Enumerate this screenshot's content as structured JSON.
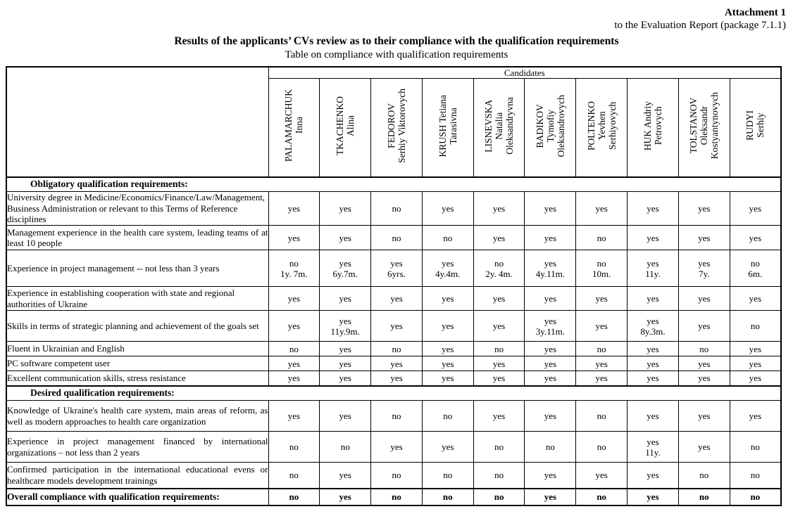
{
  "page": {
    "attachment_title": "Attachment 1",
    "attachment_subtitle": "to the Evaluation Report (package 7.1.1)",
    "title": "Results of the applicants’ CVs review as to their compliance with the qualification requirements",
    "subtitle": "Table on compliance with qualification requirements"
  },
  "table": {
    "candidates_label": "Candidates",
    "candidates": [
      [
        "PALAMARCHUK",
        "Inna"
      ],
      [
        "TKACHENKO",
        "Alina"
      ],
      [
        "FEDOROV",
        "Serhiy Viktorovych"
      ],
      [
        "KRUSH Tetiana",
        "Tarasivna"
      ],
      [
        "LISNEVSKA",
        "Natalia",
        "Oleksandryvna"
      ],
      [
        "BADIKOV",
        "Tymofiy",
        "Oleksandrovych"
      ],
      [
        "POLTENKO",
        "Yevhen",
        "Serhiyovych"
      ],
      [
        "HUK Andriy",
        "Petrovych"
      ],
      [
        "TOLSTANOV",
        "Oleksandr",
        "Kostyantynovych"
      ],
      [
        "RUDYI",
        "Serhiy"
      ]
    ],
    "rows": [
      {
        "type": "section",
        "h": 21,
        "label": "Obligatory qualification requirements:"
      },
      {
        "type": "req",
        "h": 48,
        "justify": false,
        "label": "University degree in Medicine/Economics/Finance/Law/Management, Business Administration or relevant to this Terms of Reference disciplines",
        "values": [
          [
            "yes"
          ],
          [
            "yes"
          ],
          [
            "no"
          ],
          [
            "yes"
          ],
          [
            "yes"
          ],
          [
            "yes"
          ],
          [
            "yes"
          ],
          [
            "yes"
          ],
          [
            "yes"
          ],
          [
            "yes"
          ]
        ]
      },
      {
        "type": "req",
        "h": 35,
        "justify": true,
        "label": "Management experience in the health care system, leading teams of at least 10 people",
        "values": [
          [
            "yes"
          ],
          [
            "yes"
          ],
          [
            "no"
          ],
          [
            "no"
          ],
          [
            "yes"
          ],
          [
            "yes"
          ],
          [
            "no"
          ],
          [
            "yes"
          ],
          [
            "yes"
          ],
          [
            "yes"
          ]
        ]
      },
      {
        "type": "req",
        "h": 52,
        "justify": false,
        "label": "Experience in project management -- not less than 3 years",
        "values": [
          [
            "no",
            "1y. 7m."
          ],
          [
            "yes",
            "6y.7m."
          ],
          [
            "yes",
            "6yrs."
          ],
          [
            "yes",
            "4y.4m."
          ],
          [
            "no",
            "2y. 4m."
          ],
          [
            "yes",
            "4y.11m."
          ],
          [
            "no",
            "10m."
          ],
          [
            "yes",
            "11y."
          ],
          [
            "yes",
            "7y."
          ],
          [
            "no",
            "6m."
          ]
        ]
      },
      {
        "type": "req",
        "h": 34,
        "justify": false,
        "label": "Experience in establishing cooperation with state and regional authorities of Ukraine",
        "values": [
          [
            "yes"
          ],
          [
            "yes"
          ],
          [
            "yes"
          ],
          [
            "yes"
          ],
          [
            "yes"
          ],
          [
            "yes"
          ],
          [
            "yes"
          ],
          [
            "yes"
          ],
          [
            "yes"
          ],
          [
            "yes"
          ]
        ]
      },
      {
        "type": "req",
        "h": 44,
        "justify": false,
        "label": "Skills in terms of strategic planning and achievement of the goals set",
        "values": [
          [
            "yes"
          ],
          [
            "yes",
            "11y.9m."
          ],
          [
            "yes"
          ],
          [
            "yes"
          ],
          [
            "yes"
          ],
          [
            "yes",
            "3y.11m."
          ],
          [
            "yes"
          ],
          [
            "yes",
            "8y.3m."
          ],
          [
            "yes"
          ],
          [
            "no"
          ]
        ]
      },
      {
        "type": "req",
        "h": 21,
        "justify": false,
        "label": "Fluent in Ukrainian and English",
        "values": [
          [
            "no"
          ],
          [
            "yes"
          ],
          [
            "no"
          ],
          [
            "yes"
          ],
          [
            "no"
          ],
          [
            "yes"
          ],
          [
            "no"
          ],
          [
            "yes"
          ],
          [
            "no"
          ],
          [
            "yes"
          ]
        ]
      },
      {
        "type": "req",
        "h": 21,
        "justify": false,
        "label": "PC software competent user",
        "values": [
          [
            "yes"
          ],
          [
            "yes"
          ],
          [
            "yes"
          ],
          [
            "yes"
          ],
          [
            "yes"
          ],
          [
            "yes"
          ],
          [
            "yes"
          ],
          [
            "yes"
          ],
          [
            "yes"
          ],
          [
            "yes"
          ]
        ]
      },
      {
        "type": "req",
        "h": 21,
        "justify": false,
        "label": "Excellent communication skills, stress resistance",
        "values": [
          [
            "yes"
          ],
          [
            "yes"
          ],
          [
            "yes"
          ],
          [
            "yes"
          ],
          [
            "yes"
          ],
          [
            "yes"
          ],
          [
            "yes"
          ],
          [
            "yes"
          ],
          [
            "yes"
          ],
          [
            "yes"
          ]
        ]
      },
      {
        "type": "section",
        "h": 21,
        "label": "Desired qualification requirements:"
      },
      {
        "type": "req",
        "h": 44,
        "justify": true,
        "label": "Knowledge of Ukraine's health care system, main areas of reform, as well as modern approaches to health care organization",
        "values": [
          [
            "yes"
          ],
          [
            "yes"
          ],
          [
            "no"
          ],
          [
            "no"
          ],
          [
            "yes"
          ],
          [
            "yes"
          ],
          [
            "no"
          ],
          [
            "yes"
          ],
          [
            "yes"
          ],
          [
            "yes"
          ]
        ]
      },
      {
        "type": "req",
        "h": 44,
        "justify": true,
        "label": "Experience in project management financed by international organizations – not less than 2 years",
        "values": [
          [
            "no"
          ],
          [
            "no"
          ],
          [
            "yes"
          ],
          [
            "yes"
          ],
          [
            "no"
          ],
          [
            "no"
          ],
          [
            "no"
          ],
          [
            "yes",
            "11y."
          ],
          [
            "yes"
          ],
          [
            "no"
          ]
        ]
      },
      {
        "type": "req",
        "h": 37,
        "justify": true,
        "label": "Confirmed participation in the international educational evens or healthcare models development trainings",
        "values": [
          [
            "no"
          ],
          [
            "yes"
          ],
          [
            "no"
          ],
          [
            "no"
          ],
          [
            "no"
          ],
          [
            "yes"
          ],
          [
            "yes"
          ],
          [
            "yes"
          ],
          [
            "no"
          ],
          [
            "no"
          ]
        ]
      },
      {
        "type": "overall",
        "h": 24,
        "justify": false,
        "label": "Overall compliance with qualification requirements:",
        "values": [
          [
            "no"
          ],
          [
            "yes"
          ],
          [
            "no"
          ],
          [
            "no"
          ],
          [
            "no"
          ],
          [
            "yes"
          ],
          [
            "no"
          ],
          [
            "yes"
          ],
          [
            "no"
          ],
          [
            "no"
          ]
        ]
      }
    ]
  }
}
